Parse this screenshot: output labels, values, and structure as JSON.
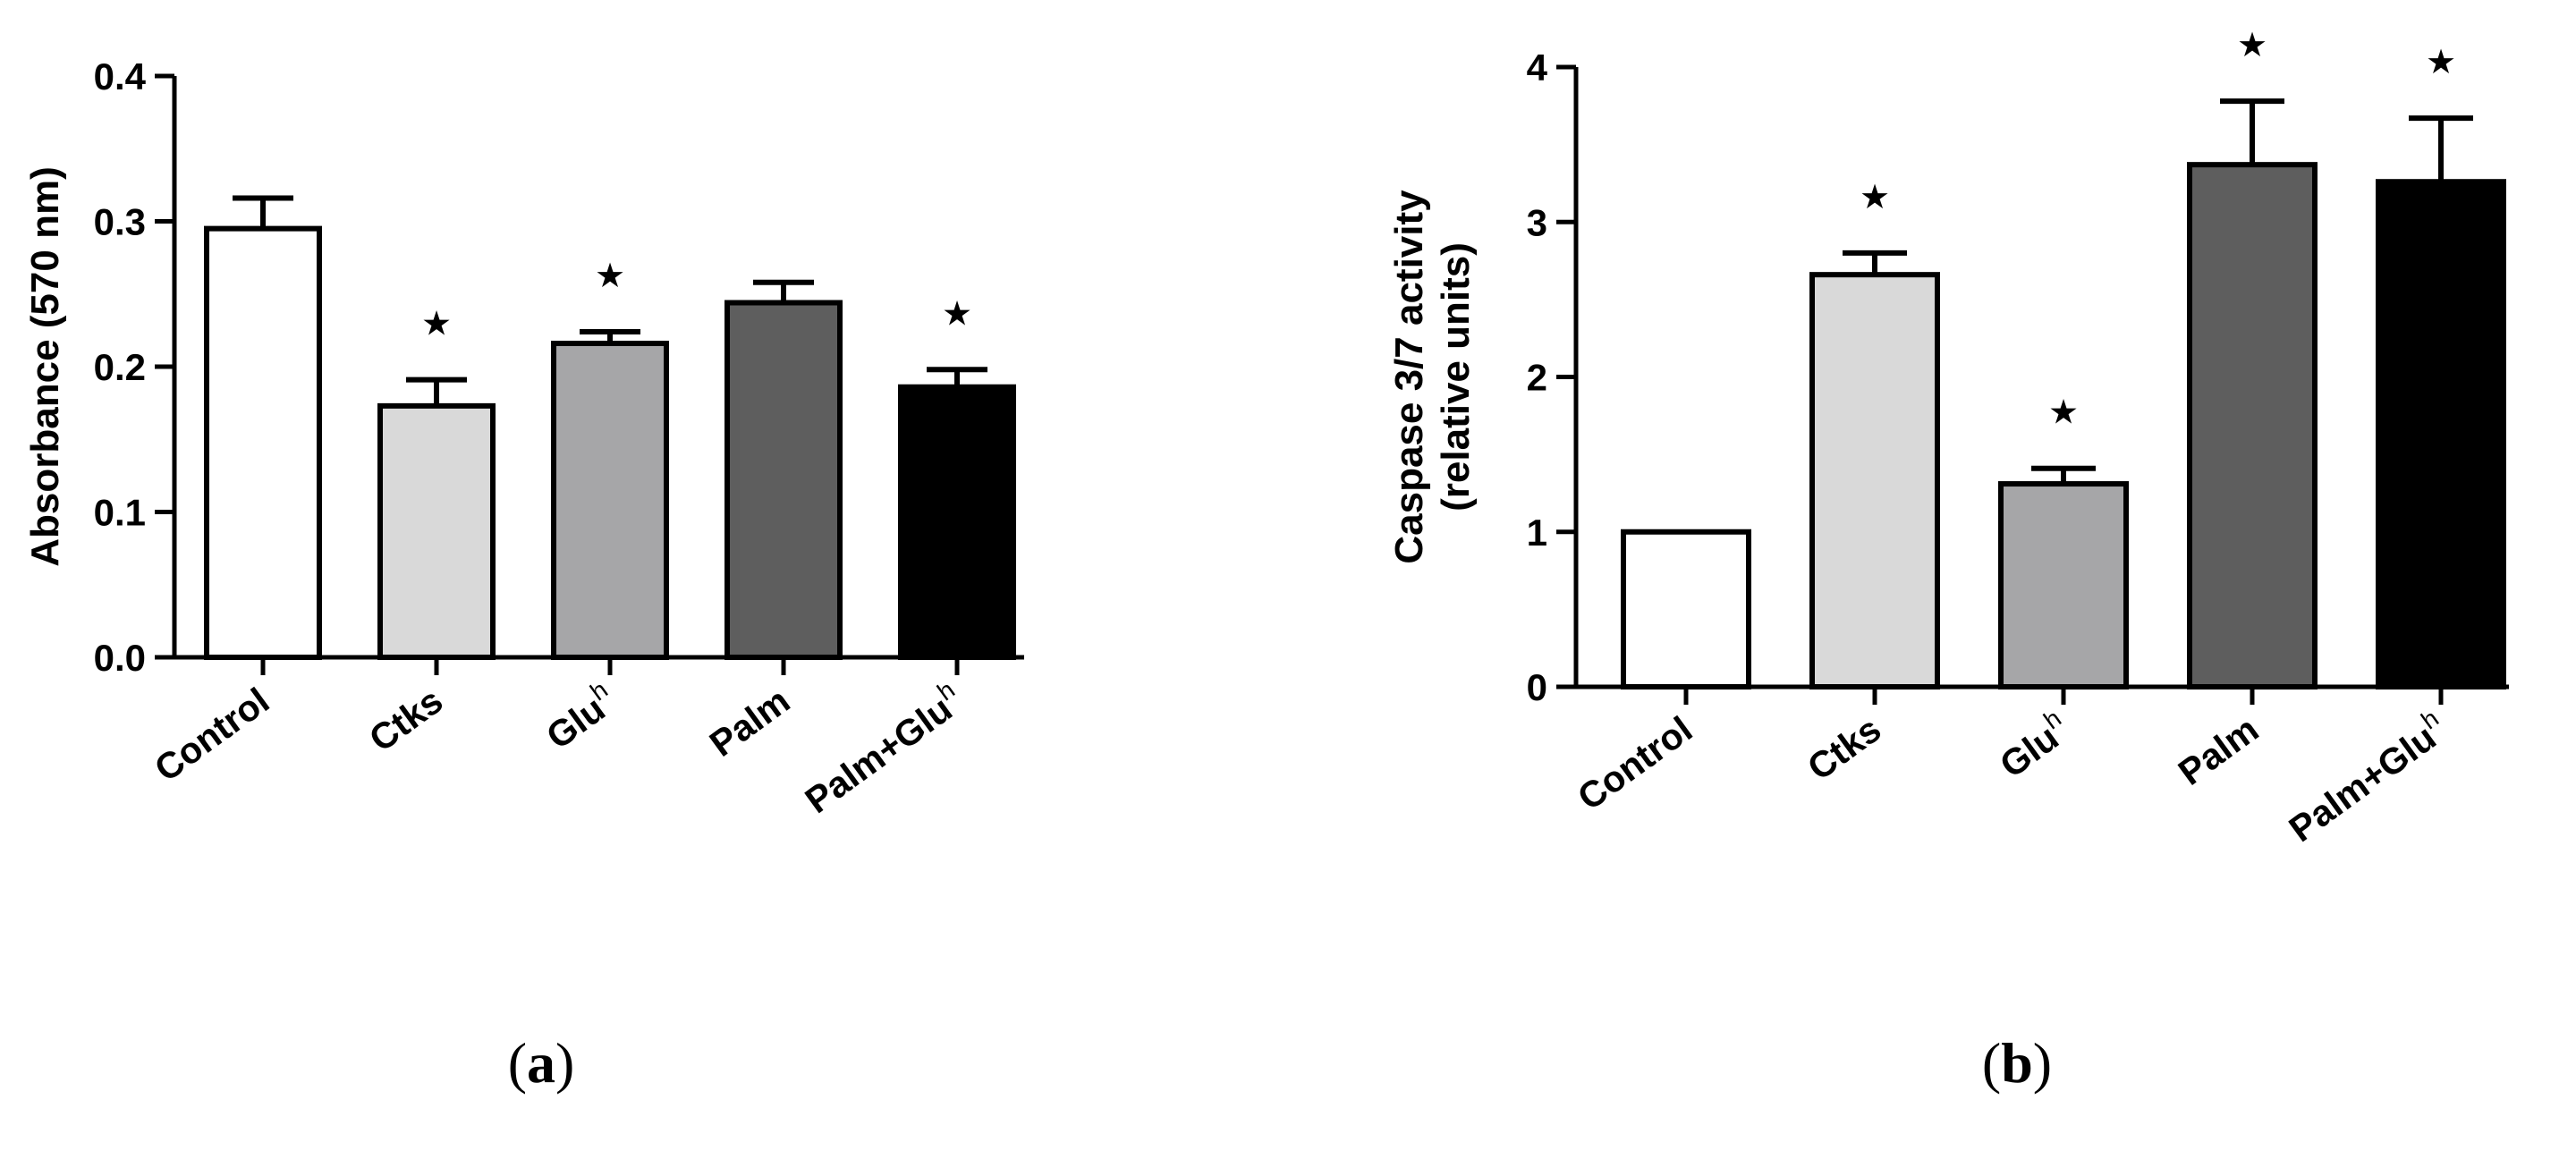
{
  "panel_labels": [
    "(a)",
    "(b)"
  ],
  "chart_data": [
    {
      "type": "bar",
      "panel": "(a)",
      "categories": [
        {
          "base": "Control",
          "sup": ""
        },
        {
          "base": "Ctks",
          "sup": ""
        },
        {
          "base": "Glu",
          "sup": "h"
        },
        {
          "base": "Palm",
          "sup": ""
        },
        {
          "base": "Palm+Glu",
          "sup": "h"
        }
      ],
      "values": [
        0.295,
        0.173,
        0.216,
        0.244,
        0.186
      ],
      "errors": [
        0.021,
        0.018,
        0.008,
        0.014,
        0.012
      ],
      "significant": [
        false,
        true,
        true,
        false,
        true
      ],
      "significance_marker": "★",
      "bar_colors": [
        "#ffffff",
        "#d9d9d9",
        "#a6a6a8",
        "#5e5e5e",
        "#000000"
      ],
      "ylabel": "Absorbance (570 nm)",
      "ylim": [
        0,
        0.4
      ],
      "yticks": [
        "0.0",
        "0.1",
        "0.2",
        "0.3",
        "0.4"
      ],
      "ytick_values": [
        0,
        0.1,
        0.2,
        0.3,
        0.4
      ],
      "grid": false,
      "legend": "none"
    },
    {
      "type": "bar",
      "panel": "(b)",
      "categories": [
        {
          "base": "Control",
          "sup": ""
        },
        {
          "base": "Ctks",
          "sup": ""
        },
        {
          "base": "Glu",
          "sup": "h"
        },
        {
          "base": "Palm",
          "sup": ""
        },
        {
          "base": "Palm+Glu",
          "sup": "h"
        }
      ],
      "values": [
        1.0,
        2.66,
        1.31,
        3.37,
        3.26
      ],
      "errors": [
        0.0,
        0.14,
        0.1,
        0.41,
        0.41
      ],
      "significant": [
        false,
        true,
        true,
        true,
        true
      ],
      "significance_marker": "★",
      "bar_colors": [
        "#ffffff",
        "#d9d9d9",
        "#a6a6a8",
        "#5e5e5e",
        "#000000"
      ],
      "ylabel_lines": [
        "Caspase 3/7 activity",
        "(relative units)"
      ],
      "ylim": [
        0,
        4
      ],
      "yticks": [
        "0",
        "1",
        "2",
        "3",
        "4"
      ],
      "ytick_values": [
        0,
        1,
        2,
        3,
        4
      ],
      "grid": false,
      "legend": "none"
    }
  ]
}
